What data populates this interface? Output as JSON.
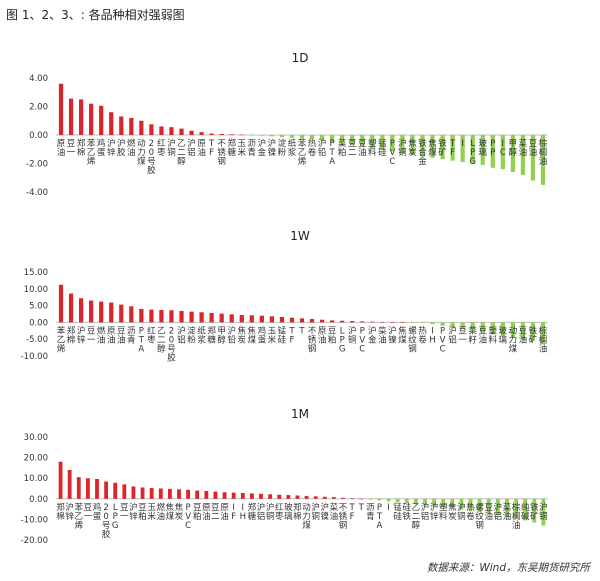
{
  "figure_title": "图 1、2、3、: 各品种相对强弱图",
  "source": "数据来源：Wind，东吴期货研究所",
  "colors": {
    "positive": "#d9252b",
    "negative": "#92d050",
    "axis": "#bfbfbf",
    "text": "#333333"
  },
  "chart_data": [
    {
      "type": "bar",
      "title": "1D",
      "ylim": [
        -4,
        4
      ],
      "yticks": [
        4,
        2,
        0,
        -2,
        -4
      ],
      "ytick_labels": [
        "4.00",
        "2.00",
        "0.00",
        "-2.00",
        "-4.00"
      ],
      "grid": false,
      "legend": "none",
      "categories": [
        "原油",
        "豆一",
        "郑棉",
        "苯乙烯",
        "鸡蛋",
        "沪锌",
        "沪胶",
        "燃油",
        "动力煤",
        "20号胶",
        "红枣",
        "沪铜",
        "乙二醇",
        "沪铝",
        "原油",
        "TF",
        "不锈钢",
        "郑糖",
        "玉米",
        "沥青",
        "沪金",
        "沪镍",
        "淀粉",
        "纸浆",
        "苯乙烯",
        "热卷",
        "沪铅",
        "PTA",
        "菜粕",
        "豆二",
        "豆油",
        "塑料",
        "锰硅",
        "PVC",
        "沪铜",
        "焦炭",
        "铁合金",
        "焦煤",
        "铁矿",
        "TF",
        "I",
        "LPG",
        "玻璃",
        "PP",
        "IC",
        "甲醇",
        "菜油",
        "豆油",
        "棕榈油"
      ],
      "values": [
        3.6,
        2.55,
        2.5,
        2.2,
        2.05,
        1.6,
        1.3,
        1.2,
        1.0,
        0.75,
        0.6,
        0.55,
        0.45,
        0.3,
        0.2,
        0.1,
        0.08,
        0.05,
        0.03,
        -0.02,
        -0.05,
        -0.1,
        -0.15,
        -0.2,
        -0.25,
        -0.3,
        -0.4,
        -0.5,
        -0.6,
        -0.7,
        -0.8,
        -0.95,
        -1.05,
        -1.15,
        -1.3,
        -1.4,
        -1.5,
        -1.6,
        -1.7,
        -1.8,
        -1.9,
        -2.0,
        -2.1,
        -2.3,
        -2.4,
        -2.6,
        -2.8,
        -3.2,
        -3.5
      ]
    },
    {
      "type": "bar",
      "title": "1W",
      "ylim": [
        -10,
        15
      ],
      "yticks": [
        15,
        10,
        5,
        0,
        -5,
        -10
      ],
      "ytick_labels": [
        "15.00",
        "10.00",
        "5.00",
        "0.00",
        "-5.00",
        "-10.00"
      ],
      "grid": false,
      "legend": "none",
      "categories": [
        "苯乙烯",
        "郑棉",
        "沪锌",
        "豆一",
        "燃油",
        "原油",
        "豆油",
        "沥青",
        "PTA",
        "红枣",
        "乙二醇",
        "20号胶",
        "沪铝",
        "淀粉",
        "纸浆",
        "郑糖",
        "甲醇",
        "沪铅",
        "焦炭",
        "焦煤",
        "鸡蛋",
        "玉米",
        "锰硅",
        "TF",
        "T",
        "不锈钢",
        "原油",
        "豆粕",
        "LPG",
        "沪铜",
        "PVC",
        "沪金",
        "菜油",
        "沪镍",
        "焦煤",
        "螺纹钢",
        "热卷",
        "IH",
        "PVC",
        "沪铝",
        "豆一",
        "菜籽",
        "豆油",
        "塑料",
        "玻璃",
        "动力煤",
        "豆油",
        "铁矿",
        "棕榈油"
      ],
      "values": [
        11.2,
        8.6,
        7.2,
        6.5,
        6.2,
        5.9,
        5.3,
        4.8,
        4.0,
        3.8,
        3.7,
        3.6,
        3.4,
        3.2,
        3.0,
        2.8,
        2.6,
        2.4,
        2.2,
        2.1,
        2.0,
        1.8,
        1.6,
        1.4,
        1.2,
        1.0,
        0.8,
        0.6,
        0.5,
        0.4,
        0.3,
        0.2,
        0.1,
        0.05,
        0.0,
        -0.1,
        -0.2,
        -0.5,
        -1.0,
        -1.5,
        -2.0,
        -2.5,
        -3.0,
        -3.5,
        -4.0,
        -4.5,
        -5.0,
        -5.5,
        -6.5
      ]
    },
    {
      "type": "bar",
      "title": "1M",
      "ylim": [
        -20,
        30
      ],
      "yticks": [
        30,
        20,
        10,
        0,
        -10,
        -20
      ],
      "ytick_labels": [
        "30.00",
        "20.00",
        "10.00",
        "0.00",
        "-10.00",
        "-20.00"
      ],
      "grid": false,
      "legend": "none",
      "categories": [
        "郑棉",
        "沪锌",
        "苯乙烯",
        "豆一",
        "鸡蛋",
        "20号胶",
        "LPG",
        "豆一",
        "沪锌",
        "豆粕",
        "玉米",
        "燃油",
        "焦煤",
        "焦炭",
        "PVC",
        "豆粕",
        "原油",
        "豆二",
        "原油",
        "IF",
        "IH",
        "郑糖",
        "沪铝",
        "沪铜",
        "红枣",
        "玻璃",
        "郑棉",
        "动力煤",
        "沪铜",
        "沪镍",
        "菜油",
        "不锈钢",
        "TF",
        "T",
        "沥青",
        "PTA",
        "I",
        "锰硅",
        "硅铁",
        "乙二醇",
        "沪铝",
        "沪锌",
        "塑料",
        "焦炭",
        "沪铜",
        "热卷",
        "螺纹钢",
        "豆油",
        "沪铝",
        "菜油",
        "棕榈油",
        "纯碱",
        "铁矿",
        "沪铜"
      ],
      "values": [
        18.0,
        14.0,
        10.5,
        10.0,
        9.6,
        8.4,
        7.8,
        7.0,
        6.0,
        5.5,
        5.2,
        5.0,
        4.8,
        4.6,
        4.4,
        4.0,
        3.8,
        3.5,
        3.2,
        3.0,
        2.8,
        2.6,
        2.4,
        2.2,
        2.0,
        1.8,
        1.6,
        1.4,
        1.2,
        1.0,
        0.8,
        0.5,
        0.3,
        0.0,
        -0.3,
        -0.8,
        -1.2,
        -1.8,
        -2.2,
        -2.6,
        -3.2,
        -3.6,
        -4.2,
        -4.6,
        -5.2,
        -5.8,
        -6.5,
        -7.2,
        -8.0,
        -8.8,
        -9.6,
        -10.5,
        -11.5,
        -13.0
      ]
    }
  ]
}
